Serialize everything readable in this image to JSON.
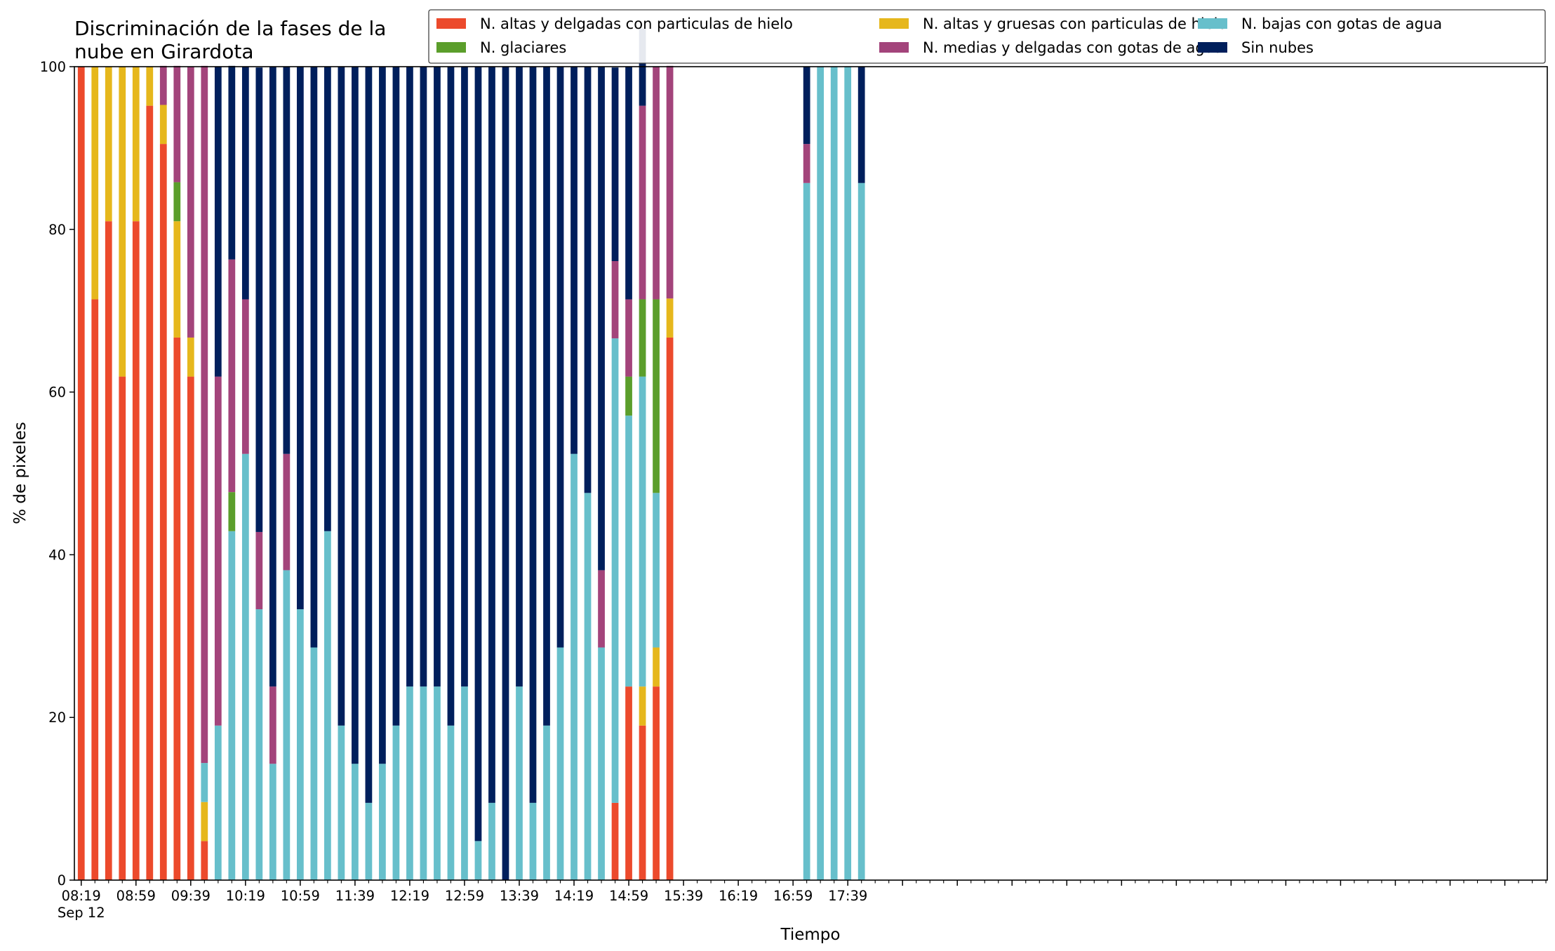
{
  "chart_data": {
    "type": "bar",
    "stacked": true,
    "title": "Discriminación de la fases de la nube en Girardota",
    "title_lines": [
      "Discriminación de la fases de la",
      "nube en Girardota"
    ],
    "xlabel": "Tiempo",
    "ylabel": "% de pixeles",
    "ylim": [
      0,
      100
    ],
    "yticks": [
      0,
      20,
      40,
      60,
      80,
      100
    ],
    "xlim_minutes_after_0800": [
      14,
      1090
    ],
    "x_first_label": "08:19",
    "x_first_sublabel": "Sep 12",
    "x_labels": [
      "08:19",
      "08:59",
      "09:39",
      "10:19",
      "10:59",
      "11:39",
      "12:19",
      "12:59",
      "13:39",
      "14:19",
      "14:59",
      "15:39",
      "16:19",
      "16:59",
      "17:39"
    ],
    "legend_position": "top-right",
    "legend_columns": 3,
    "grid": false,
    "x": [
      "08:19",
      "08:29",
      "08:39",
      "08:49",
      "08:59",
      "09:09",
      "09:19",
      "09:29",
      "09:39",
      "09:49",
      "09:59",
      "10:09",
      "10:19",
      "10:29",
      "10:39",
      "10:49",
      "10:59",
      "11:09",
      "11:19",
      "11:29",
      "11:39",
      "11:49",
      "11:59",
      "12:09",
      "12:19",
      "12:29",
      "12:39",
      "12:49",
      "12:59",
      "13:09",
      "13:19",
      "13:29",
      "13:39",
      "13:49",
      "13:59",
      "14:09",
      "14:19",
      "14:29",
      "14:39",
      "14:49",
      "14:59",
      "15:09",
      "15:19",
      "15:29",
      "17:09",
      "17:19",
      "17:29",
      "17:39",
      "17:49"
    ],
    "series": [
      {
        "name": "N. altas y delgadas con particulas de hielo",
        "color": "#ec4a2c",
        "values": [
          100,
          71.4,
          81,
          61.9,
          81,
          95.2,
          90.5,
          66.7,
          61.9,
          4.8,
          0,
          0,
          0,
          0,
          0,
          0,
          0,
          0,
          0,
          0,
          0,
          0,
          0,
          0,
          0,
          0,
          0,
          0,
          0,
          0,
          0,
          0,
          0,
          0,
          0,
          0,
          0,
          0,
          0,
          9.5,
          23.8,
          19,
          23.8,
          66.7,
          0,
          0,
          0,
          0,
          0
        ]
      },
      {
        "name": "N. altas y gruesas con particulas de hielo",
        "color": "#e6b71c",
        "values": [
          0,
          28.6,
          19,
          38.1,
          19,
          4.8,
          4.8,
          14.3,
          4.8,
          4.8,
          0,
          0,
          0,
          0,
          0,
          0,
          0,
          0,
          0,
          0,
          0,
          0,
          0,
          0,
          0,
          0,
          0,
          0,
          0,
          0,
          0,
          0,
          0,
          0,
          0,
          0,
          0,
          0,
          0,
          0,
          0,
          4.8,
          4.8,
          4.8,
          0,
          0,
          0,
          0,
          0
        ]
      },
      {
        "name": "N. bajas con gotas de agua",
        "color": "#67bfcb",
        "values": [
          0,
          0,
          0,
          0,
          0,
          0,
          0,
          0,
          0,
          4.8,
          19,
          42.9,
          52.4,
          33.3,
          14.3,
          38.1,
          33.3,
          28.6,
          42.9,
          19,
          14.3,
          9.5,
          14.3,
          19,
          23.8,
          23.8,
          23.8,
          19,
          23.8,
          4.8,
          9.5,
          0,
          23.8,
          9.5,
          19,
          28.6,
          52.4,
          47.6,
          28.6,
          57.1,
          33.3,
          38.1,
          19,
          0,
          85.7,
          100,
          100,
          100,
          85.7
        ]
      },
      {
        "name": "N. glaciares",
        "color": "#5b9e2b",
        "values": [
          0,
          0,
          0,
          0,
          0,
          0,
          0,
          4.8,
          0,
          0,
          0,
          4.8,
          0,
          0,
          0,
          0,
          0,
          0,
          0,
          0,
          0,
          0,
          0,
          0,
          0,
          0,
          0,
          0,
          0,
          0,
          0,
          0,
          0,
          0,
          0,
          0,
          0,
          0,
          0,
          0,
          4.8,
          9.5,
          23.8,
          0,
          0,
          0,
          0,
          0,
          0
        ]
      },
      {
        "name": "N. medias y delgadas con gotas de agua",
        "color": "#a3447b",
        "values": [
          0,
          0,
          0,
          0,
          0,
          0,
          4.8,
          14.3,
          33.3,
          85.7,
          42.9,
          28.6,
          19,
          9.5,
          9.5,
          14.3,
          0,
          0,
          0,
          0,
          0,
          0,
          0,
          0,
          0,
          0,
          0,
          0,
          0,
          0,
          0,
          0,
          0,
          0,
          0,
          0,
          0,
          0,
          9.5,
          9.5,
          9.5,
          23.8,
          28.6,
          28.6,
          4.8,
          0,
          0,
          0,
          0
        ]
      },
      {
        "name": "Sin nubes",
        "color": "#001f5c",
        "values": [
          0,
          0,
          0,
          0,
          0,
          0,
          0,
          0,
          0,
          0,
          38.1,
          23.8,
          28.6,
          57.1,
          76.2,
          47.6,
          66.7,
          71.4,
          57.1,
          81,
          85.7,
          90.5,
          85.7,
          81,
          76.2,
          76.2,
          76.2,
          81,
          76.2,
          95.2,
          90.5,
          100,
          76.2,
          90.5,
          81,
          71.4,
          47.6,
          52.4,
          61.9,
          23.8,
          28.6,
          9.5,
          0,
          0,
          9.5,
          0,
          0,
          0,
          14.3
        ]
      }
    ]
  }
}
